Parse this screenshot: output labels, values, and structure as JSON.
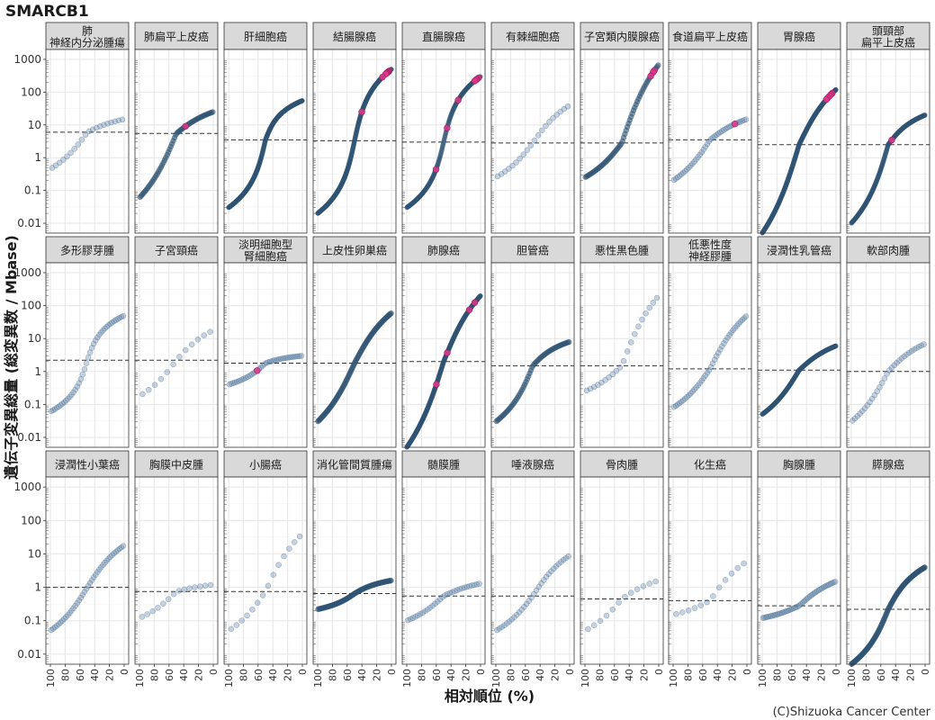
{
  "chart_data": {
    "type": "scatter",
    "title": "SMARCB1",
    "xlabel": "相対順位 (%)",
    "ylabel": "遺伝子変異総量 (総変異数 / Mbase)",
    "credit": "(C)Shizuoka Cancer Center",
    "x_reversed": true,
    "xlim": [
      100,
      0
    ],
    "x_ticks": [
      100,
      80,
      60,
      40,
      20,
      0
    ],
    "x_tick_labels": [
      "100",
      "80",
      "60",
      "40",
      "20",
      "0"
    ],
    "y_scale": "log",
    "ylim": [
      0.005,
      2000
    ],
    "y_ticks": [
      0.01,
      0.1,
      1,
      10,
      100,
      1000
    ],
    "y_tick_labels": [
      "0.01",
      "0.1",
      "1",
      "10",
      "100",
      "1000"
    ],
    "grid": true,
    "highlight_color": "#e0368a",
    "point_color": "#6b8fb3",
    "dark_point_color": "#2f5373",
    "facets": [
      {
        "label": "肺\n神経内分泌腫瘍",
        "n": 20,
        "lo": 0.45,
        "hi": 15,
        "median": 6,
        "k": 2,
        "s": 0,
        "hl": []
      },
      {
        "label": "肺扁平上皮癌",
        "n": 60,
        "lo": 0.06,
        "hi": 25,
        "median": 5.5,
        "k": 2,
        "s": 0.5,
        "hl": [
          38
        ]
      },
      {
        "label": "肝細胞癌",
        "n": 300,
        "lo": 0.03,
        "hi": 55,
        "median": 3.5,
        "k": 6,
        "s": 0.4,
        "hl": []
      },
      {
        "label": "結腸腺癌",
        "n": 300,
        "lo": 0.02,
        "hi": 500,
        "median": 3.3,
        "k": 6,
        "s": 3,
        "hl": [
          3,
          4,
          5,
          6,
          7,
          8,
          12,
          40
        ]
      },
      {
        "label": "直腸腺癌",
        "n": 160,
        "lo": 0.03,
        "hi": 300,
        "median": 3,
        "k": 6,
        "s": 3,
        "hl": [
          3,
          5,
          6,
          8,
          30,
          45,
          60
        ]
      },
      {
        "label": "有棘細胞癌",
        "n": 20,
        "lo": 0.25,
        "hi": 40,
        "median": 2.8,
        "k": 2,
        "s": 0.8,
        "hl": []
      },
      {
        "label": "子宮類内膜腺癌",
        "n": 60,
        "lo": 0.25,
        "hi": 700,
        "median": 2.8,
        "k": 2,
        "s": 2.5,
        "hl": [
          5,
          8,
          10
        ]
      },
      {
        "label": "食道扁平上皮癌",
        "n": 40,
        "lo": 0.2,
        "hi": 15,
        "median": 3.5,
        "k": 2,
        "s": 0.3,
        "hl": [
          15
        ]
      },
      {
        "label": "胃腺癌",
        "n": 300,
        "lo": 0.005,
        "hi": 120,
        "median": 2.5,
        "k": 2,
        "s": 1,
        "hl": [
          5,
          7,
          9,
          11,
          13
        ]
      },
      {
        "label": "頭頸部\n扁平上皮癌",
        "n": 200,
        "lo": 0.01,
        "hi": 20,
        "median": 2.5,
        "k": 3,
        "s": 0.2,
        "hl": [
          45
        ]
      },
      {
        "label": "多形膠芽腫",
        "n": 40,
        "lo": 0.06,
        "hi": 50,
        "median": 2.2,
        "k": 6,
        "s": 0.8,
        "hl": []
      },
      {
        "label": "子宮頸癌",
        "n": 12,
        "lo": 0.18,
        "hi": 18,
        "median": 2.2,
        "k": 2,
        "s": 0.5,
        "hl": []
      },
      {
        "label": "淡明細胞型\n腎細胞癌",
        "n": 40,
        "lo": 0.4,
        "hi": 3,
        "median": 1.8,
        "k": 3,
        "s": 0.2,
        "hl": [
          60
        ]
      },
      {
        "label": "上皮性卵巣癌",
        "n": 100,
        "lo": 0.03,
        "hi": 60,
        "median": 1.8,
        "k": 2,
        "s": 0.6,
        "hl": []
      },
      {
        "label": "肺腺癌",
        "n": 300,
        "lo": 0.005,
        "hi": 200,
        "median": 2,
        "k": 2,
        "s": 1.2,
        "hl": [
          8,
          15,
          45,
          60
        ]
      },
      {
        "label": "胆管癌",
        "n": 60,
        "lo": 0.03,
        "hi": 8,
        "median": 1.5,
        "k": 3,
        "s": 0.2,
        "hl": []
      },
      {
        "label": "悪性黒色腫",
        "n": 20,
        "lo": 0.25,
        "hi": 200,
        "median": 1.5,
        "k": 2,
        "s": 1,
        "hl": []
      },
      {
        "label": "低悪性度\n神経膠腫",
        "n": 40,
        "lo": 0.08,
        "hi": 50,
        "median": 1.2,
        "k": 2,
        "s": 0.4,
        "hl": []
      },
      {
        "label": "浸潤性乳管癌",
        "n": 200,
        "lo": 0.05,
        "hi": 6,
        "median": 1.1,
        "k": 2,
        "s": 0.3,
        "hl": []
      },
      {
        "label": "軟部肉腫",
        "n": 30,
        "lo": 0.03,
        "hi": 7,
        "median": 1,
        "k": 2,
        "s": 0.4,
        "hl": []
      },
      {
        "label": "浸潤性小葉癌",
        "n": 40,
        "lo": 0.05,
        "hi": 18,
        "median": 1,
        "k": 2,
        "s": 0.6,
        "hl": []
      },
      {
        "label": "胸膜中皮腫",
        "n": 14,
        "lo": 0.12,
        "hi": 1.2,
        "median": 0.75,
        "k": 2,
        "s": 0,
        "hl": []
      },
      {
        "label": "小腸癌",
        "n": 14,
        "lo": 0.05,
        "hi": 40,
        "median": 0.75,
        "k": 2,
        "s": 0.8,
        "hl": []
      },
      {
        "label": "消化管間質腫瘍",
        "n": 80,
        "lo": 0.22,
        "hi": 1.6,
        "median": 0.65,
        "k": 3,
        "s": 0.2,
        "hl": []
      },
      {
        "label": "髄膜腫",
        "n": 30,
        "lo": 0.1,
        "hi": 1.3,
        "median": 0.55,
        "k": 2,
        "s": 0,
        "hl": []
      },
      {
        "label": "唾液腺癌",
        "n": 30,
        "lo": 0.05,
        "hi": 9,
        "median": 0.55,
        "k": 2,
        "s": 0.6,
        "hl": []
      },
      {
        "label": "骨肉腫",
        "n": 12,
        "lo": 0.05,
        "hi": 1.6,
        "median": 0.45,
        "k": 2,
        "s": 0.3,
        "hl": []
      },
      {
        "label": "化生癌",
        "n": 12,
        "lo": 0.15,
        "hi": 6,
        "median": 0.4,
        "k": 2,
        "s": 0.8,
        "hl": []
      },
      {
        "label": "胸腺腫",
        "n": 50,
        "lo": 0.12,
        "hi": 1.5,
        "median": 0.28,
        "k": 2,
        "s": 0.2,
        "hl": []
      },
      {
        "label": "膵腺癌",
        "n": 120,
        "lo": 0.005,
        "hi": 4,
        "median": 0.22,
        "k": 3,
        "s": 0.3,
        "hl": []
      }
    ]
  }
}
